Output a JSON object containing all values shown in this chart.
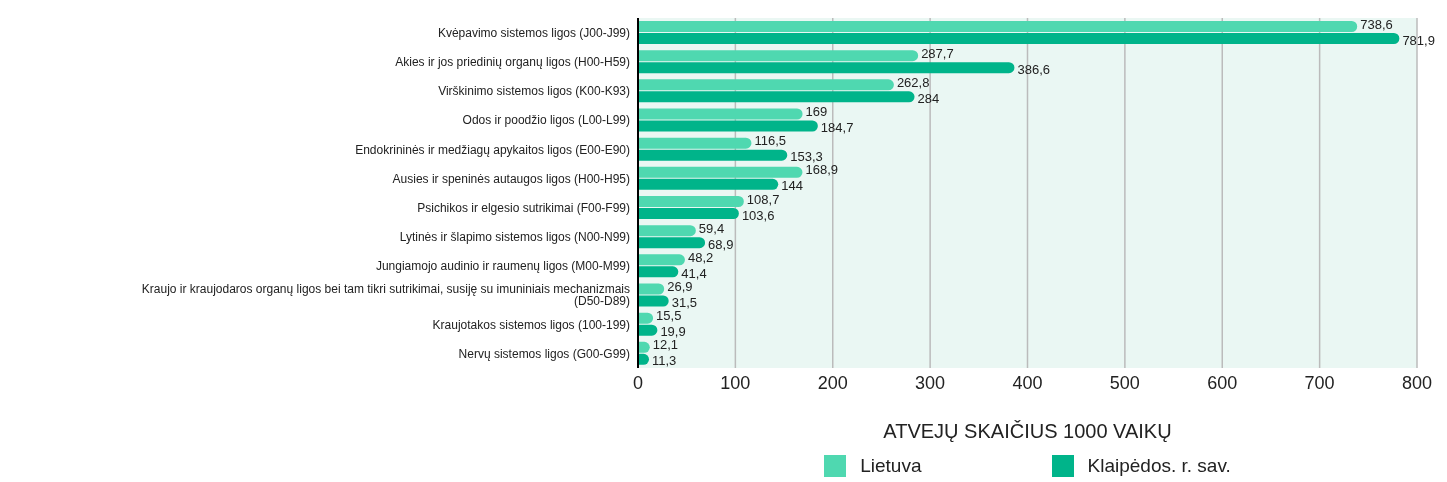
{
  "chart_data": {
    "type": "bar",
    "orientation": "horizontal",
    "xlabel": "ATVEJŲ SKAIČIUS 1000 VAIKŲ",
    "categories": [
      "Kvėpavimo sistemos ligos (J00-J99)",
      "Akies ir jos priedinių organų ligos (H00-H59)",
      "Virškinimo sistemos ligos (K00-K93)",
      "Odos ir poodžio ligos (L00-L99)",
      "Endokrininės ir medžiagų apykaitos ligos (E00-E90)",
      "Ausies ir speninės autaugos ligos (H00-H95)",
      "Psichikos ir elgesio sutrikimai (F00-F99)",
      "Lytinės ir šlapimo sistemos ligos (N00-N99)",
      "Jungiamojo audinio ir raumenų ligos (M00-M99)",
      "Kraujo ir kraujodaros organų ligos bei tam tikri sutrikimai, susiję su imuniniais mechanizmais (D50-D89)",
      "Kraujotakos sistemos ligos (100-199)",
      "Nervų sistemos ligos (G00-G99)"
    ],
    "series": [
      {
        "name": "Lietuva",
        "color": "#4fd8b0",
        "values": [
          738.6,
          287.7,
          262.8,
          169,
          116.5,
          168.9,
          108.7,
          59.4,
          48.2,
          26.9,
          15.5,
          12.1
        ],
        "value_labels": [
          "738,6",
          "287,7",
          "262,8",
          "169",
          "116,5",
          "168,9",
          "108,7",
          "59,4",
          "48,2",
          "26,9",
          "15,5",
          "12,1"
        ]
      },
      {
        "name": "Klaipėdos. r. sav.",
        "color": "#00b48a",
        "values": [
          781.9,
          386.6,
          284,
          184.7,
          153.3,
          144,
          103.6,
          68.9,
          41.4,
          31.5,
          19.9,
          11.3
        ],
        "value_labels": [
          "781,9",
          "386,6",
          "284",
          "184,7",
          "153,3",
          "144",
          "103,6",
          "68,9",
          "41,4",
          "31,5",
          "19,9",
          "11,3"
        ]
      }
    ],
    "xlim": [
      0,
      800
    ],
    "xticks": [
      0,
      100,
      200,
      300,
      400,
      500,
      600,
      700,
      800
    ],
    "grid": "x",
    "legend": "bottom"
  }
}
